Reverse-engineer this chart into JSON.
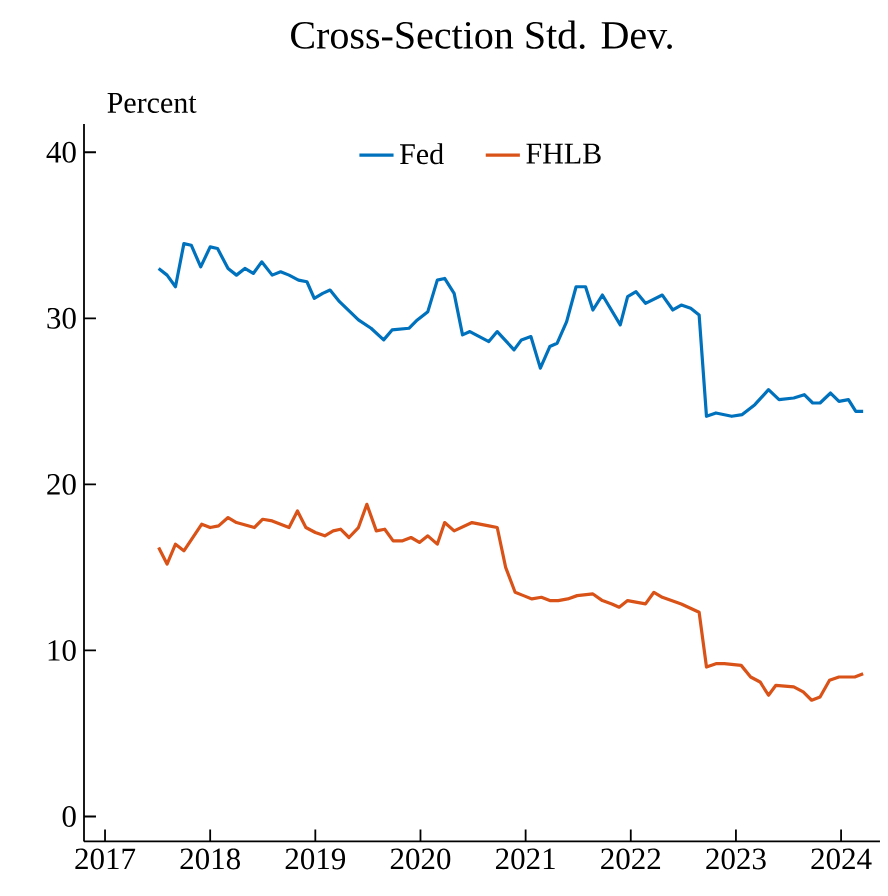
{
  "chart_data": {
    "type": "line",
    "title": "Cross-Section Std. Dev.",
    "ylabel": "Percent",
    "xlim": [
      2016.8,
      2024.37
    ],
    "ylim": [
      -1.5,
      41.7
    ],
    "xticks": [
      2017,
      2018,
      2019,
      2020,
      2021,
      2022,
      2023,
      2024
    ],
    "yticks": [
      0,
      10,
      20,
      30,
      40
    ],
    "grid": false,
    "legend": "top",
    "marker": "none",
    "line_style": "solid",
    "series": [
      {
        "name": "Fed",
        "color": "#0072bd",
        "x": [
          2017.51,
          2017.59,
          2017.67,
          2017.75,
          2017.82,
          2017.91,
          2018.0,
          2018.07,
          2018.17,
          2018.25,
          2018.33,
          2018.41,
          2018.49,
          2018.59,
          2018.67,
          2018.75,
          2018.84,
          2018.92,
          2018.99,
          2019.07,
          2019.14,
          2019.23,
          2019.41,
          2019.53,
          2019.65,
          2019.73,
          2019.89,
          2019.97,
          2020.07,
          2020.16,
          2020.23,
          2020.32,
          2020.4,
          2020.47,
          2020.56,
          2020.65,
          2020.73,
          2020.89,
          2020.96,
          2021.05,
          2021.14,
          2021.23,
          2021.3,
          2021.39,
          2021.48,
          2021.57,
          2021.64,
          2021.73,
          2021.9,
          2021.97,
          2022.05,
          2022.14,
          2022.3,
          2022.4,
          2022.48,
          2022.57,
          2022.65,
          2022.72,
          2022.81,
          2022.96,
          2023.06,
          2023.18,
          2023.31,
          2023.41,
          2023.55,
          2023.65,
          2023.73,
          2023.8,
          2023.9,
          2023.98,
          2024.07,
          2024.14,
          2024.21
        ],
        "values": [
          33.0,
          32.6,
          31.9,
          34.5,
          34.4,
          33.1,
          34.3,
          34.2,
          33.0,
          32.6,
          33.0,
          32.7,
          33.4,
          32.6,
          32.8,
          32.6,
          32.3,
          32.2,
          31.2,
          31.5,
          31.7,
          31.0,
          29.9,
          29.4,
          28.7,
          29.3,
          29.4,
          29.9,
          30.4,
          32.3,
          32.4,
          31.5,
          29.0,
          29.2,
          28.9,
          28.6,
          29.2,
          28.1,
          28.7,
          28.9,
          27.0,
          28.3,
          28.5,
          29.8,
          31.9,
          31.9,
          30.5,
          31.4,
          29.6,
          31.3,
          31.6,
          30.9,
          31.4,
          30.5,
          30.8,
          30.6,
          30.2,
          24.1,
          24.3,
          24.1,
          24.2,
          24.8,
          25.7,
          25.1,
          25.2,
          25.4,
          24.9,
          24.9,
          25.5,
          25.0,
          25.1,
          24.4,
          24.4
        ]
      },
      {
        "name": "FHLB",
        "color": "#d95319",
        "x": [
          2017.51,
          2017.59,
          2017.67,
          2017.75,
          2017.92,
          2018.0,
          2018.08,
          2018.17,
          2018.25,
          2018.42,
          2018.5,
          2018.59,
          2018.75,
          2018.83,
          2018.91,
          2019.0,
          2019.09,
          2019.17,
          2019.24,
          2019.32,
          2019.41,
          2019.49,
          2019.58,
          2019.66,
          2019.74,
          2019.83,
          2019.91,
          2019.99,
          2020.07,
          2020.16,
          2020.23,
          2020.32,
          2020.49,
          2020.65,
          2020.73,
          2020.81,
          2020.9,
          2020.98,
          2021.06,
          2021.15,
          2021.23,
          2021.31,
          2021.4,
          2021.49,
          2021.64,
          2021.73,
          2021.82,
          2021.89,
          2021.97,
          2022.14,
          2022.22,
          2022.3,
          2022.48,
          2022.65,
          2022.72,
          2022.81,
          2022.89,
          2023.05,
          2023.14,
          2023.23,
          2023.31,
          2023.38,
          2023.55,
          2023.64,
          2023.72,
          2023.8,
          2023.89,
          2023.98,
          2024.13,
          2024.21
        ],
        "values": [
          16.2,
          15.2,
          16.4,
          16.0,
          17.6,
          17.4,
          17.5,
          18.0,
          17.7,
          17.4,
          17.9,
          17.8,
          17.4,
          18.4,
          17.4,
          17.1,
          16.9,
          17.2,
          17.3,
          16.8,
          17.4,
          18.8,
          17.2,
          17.3,
          16.6,
          16.6,
          16.8,
          16.5,
          16.9,
          16.4,
          17.7,
          17.2,
          17.7,
          17.5,
          17.4,
          15.0,
          13.5,
          13.3,
          13.1,
          13.2,
          13.0,
          13.0,
          13.1,
          13.3,
          13.4,
          13.0,
          12.8,
          12.6,
          13.0,
          12.8,
          13.5,
          13.2,
          12.8,
          12.3,
          9.0,
          9.2,
          9.2,
          9.1,
          8.4,
          8.1,
          7.3,
          7.9,
          7.8,
          7.5,
          7.0,
          7.2,
          8.2,
          8.4,
          8.4,
          8.6
        ]
      }
    ]
  }
}
